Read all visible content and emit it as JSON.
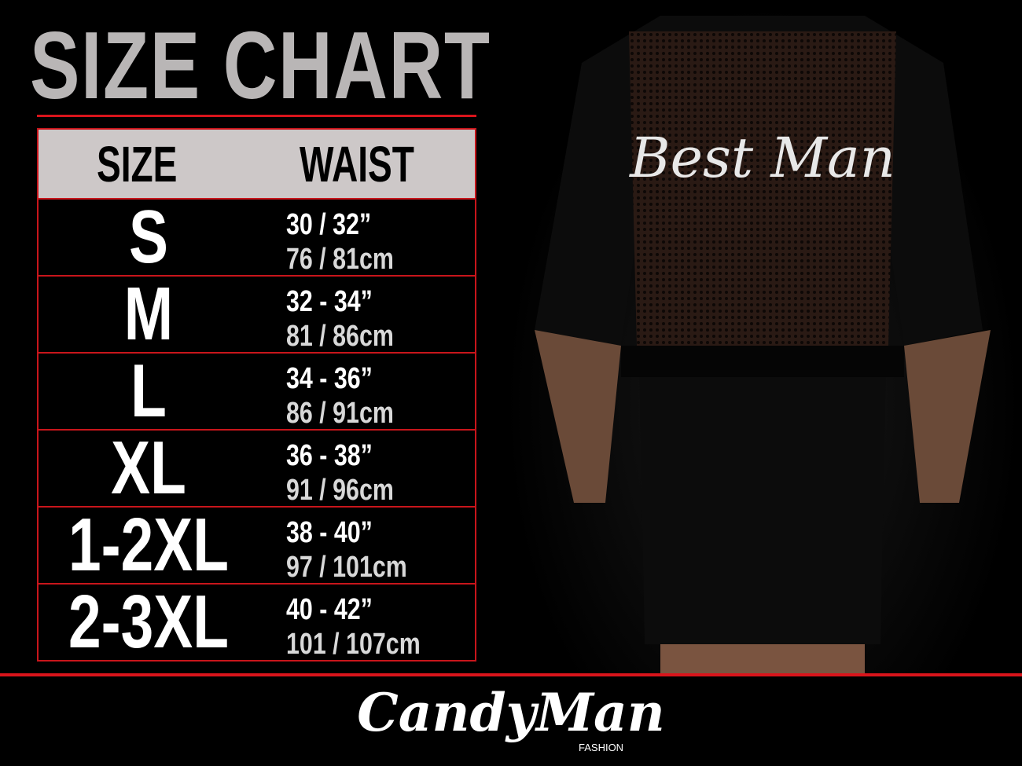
{
  "title": "SIZE CHART",
  "table": {
    "headers": [
      "SIZE",
      "WAIST"
    ],
    "rows": [
      {
        "size": "S",
        "inches": "30 / 32”",
        "cm": "76 / 81cm"
      },
      {
        "size": "M",
        "inches": "32 - 34”",
        "cm": "81 / 86cm"
      },
      {
        "size": "L",
        "inches": "34 - 36”",
        "cm": "86 / 91cm"
      },
      {
        "size": "XL",
        "inches": "36 - 38”",
        "cm": "91 / 96cm"
      },
      {
        "size": "1-2XL",
        "inches": "38 - 40”",
        "cm": "97 / 101cm"
      },
      {
        "size": "2-3XL",
        "inches": "40 - 42”",
        "cm": "101 / 107cm"
      }
    ]
  },
  "product": {
    "print_text": "Best Man"
  },
  "brand": {
    "name": "CandyMan",
    "sub": "FASHION"
  },
  "colors": {
    "accent": "#d9141b",
    "header_bg": "#cdc8c8",
    "title": "#b9b6b6",
    "background": "#000000"
  }
}
